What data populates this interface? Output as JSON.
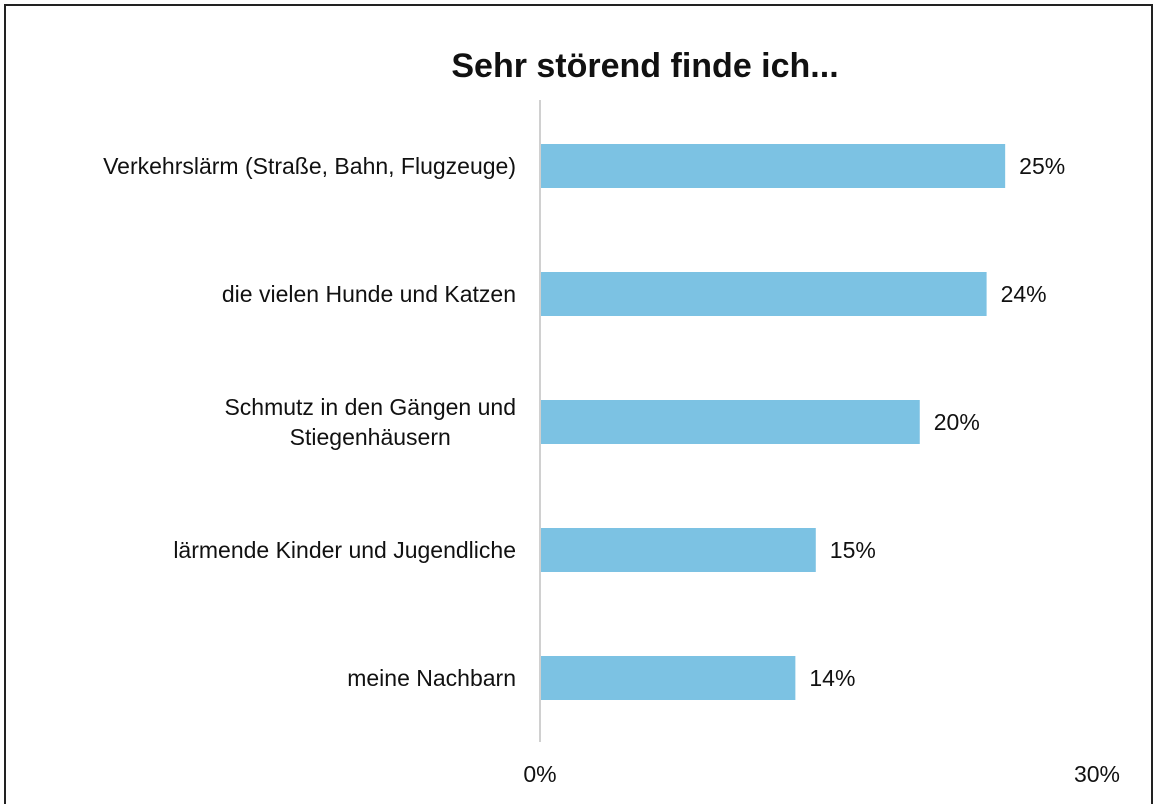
{
  "chart_data": {
    "type": "hbar",
    "title": "Sehr störend finde ich...",
    "categories": [
      "Verkehrslärm (Straße, Bahn, Flugzeuge)",
      "die vielen Hunde und Katzen",
      "Schmutz in den Gängen und\nStiegenhäusern",
      "lärmende Kinder und Jugendliche",
      "meine Nachbarn"
    ],
    "values": [
      25,
      24,
      20.4,
      14.8,
      13.7
    ],
    "value_labels": [
      "25%",
      "24%",
      "20%",
      "15%",
      "14%"
    ],
    "color": "#7cc2e3",
    "xlim": [
      0,
      30
    ],
    "xticks": [
      {
        "value": 0,
        "label": "0%"
      },
      {
        "value": 30,
        "label": "30%"
      }
    ]
  }
}
